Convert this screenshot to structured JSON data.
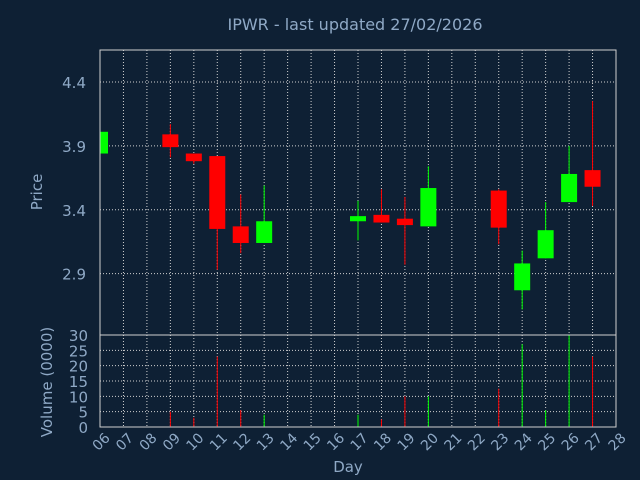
{
  "chart_data": [
    {
      "type": "candlestick",
      "title": "IPWR - last updated 27/02/2026",
      "ylabel": "Price",
      "ylim": [
        2.42,
        4.65
      ],
      "yticks": [
        "2.9",
        "3.4",
        "3.9",
        "4.4"
      ],
      "grid": true,
      "colors": {
        "up": "#00ff00",
        "down": "#ff0000",
        "title": "#ffff00",
        "grid": "#d0d0d0",
        "axis_text": "#8fa9c6",
        "background": "#0e2034"
      },
      "candles": [
        {
          "day": "06",
          "open": 3.84,
          "high": 4.01,
          "low": 3.84,
          "close": 4.01
        },
        {
          "day": "09",
          "open": 3.99,
          "high": 4.07,
          "low": 3.81,
          "close": 3.89
        },
        {
          "day": "10",
          "open": 3.84,
          "high": 3.84,
          "low": 3.76,
          "close": 3.78
        },
        {
          "day": "11",
          "open": 3.82,
          "high": 3.82,
          "low": 2.93,
          "close": 3.25
        },
        {
          "day": "12",
          "open": 3.27,
          "high": 3.52,
          "low": 3.06,
          "close": 3.14
        },
        {
          "day": "13",
          "open": 3.14,
          "high": 3.59,
          "low": 3.14,
          "close": 3.31
        },
        {
          "day": "17",
          "open": 3.31,
          "high": 3.47,
          "low": 3.16,
          "close": 3.35
        },
        {
          "day": "18",
          "open": 3.36,
          "high": 3.56,
          "low": 3.3,
          "close": 3.3
        },
        {
          "day": "19",
          "open": 3.33,
          "high": 3.5,
          "low": 2.97,
          "close": 3.28
        },
        {
          "day": "20",
          "open": 3.27,
          "high": 3.74,
          "low": 3.27,
          "close": 3.57
        },
        {
          "day": "23",
          "open": 3.55,
          "high": 3.56,
          "low": 3.13,
          "close": 3.26
        },
        {
          "day": "24",
          "open": 2.77,
          "high": 3.08,
          "low": 2.62,
          "close": 2.98
        },
        {
          "day": "25",
          "open": 3.02,
          "high": 3.46,
          "low": 3.02,
          "close": 3.24
        },
        {
          "day": "26",
          "open": 3.46,
          "high": 3.9,
          "low": 3.46,
          "close": 3.68
        },
        {
          "day": "27",
          "open": 3.71,
          "high": 4.25,
          "low": 3.43,
          "close": 3.58
        }
      ]
    },
    {
      "type": "bar",
      "ylabel": "Volume (0000)",
      "xlabel": "Day",
      "ylim": [
        0,
        30
      ],
      "yticks": [
        "0",
        "5",
        "10",
        "15",
        "20",
        "25",
        "30"
      ],
      "categories": [
        "06",
        "07",
        "08",
        "09",
        "10",
        "11",
        "12",
        "13",
        "14",
        "15",
        "16",
        "17",
        "18",
        "19",
        "20",
        "21",
        "22",
        "23",
        "24",
        "25",
        "26",
        "27",
        "28"
      ],
      "values": [
        0.3,
        0,
        0,
        5,
        3,
        23,
        5.5,
        4,
        0,
        0,
        0,
        4,
        2.5,
        10,
        10,
        0,
        0,
        12.5,
        27,
        5.5,
        30,
        23,
        0
      ],
      "direction": [
        "up",
        "",
        "",
        "down",
        "down",
        "down",
        "down",
        "up",
        "",
        "",
        "",
        "up",
        "down",
        "down",
        "up",
        "",
        "",
        "down",
        "up",
        "up",
        "up",
        "down",
        ""
      ]
    }
  ]
}
